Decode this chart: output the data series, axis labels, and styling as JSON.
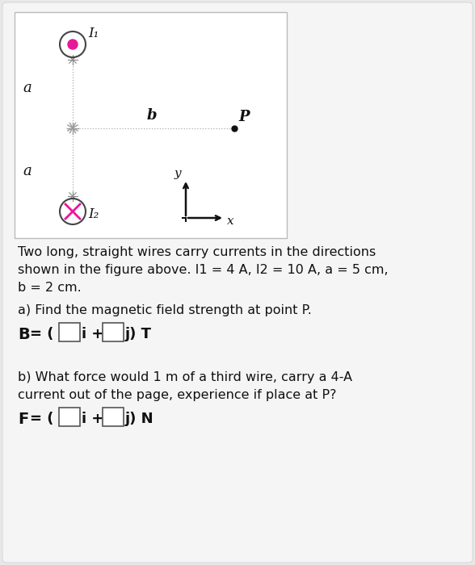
{
  "bg_color": "#e8e8e8",
  "card_color": "#f5f5f5",
  "diagram_bg": "#ffffff",
  "diagram_border": "#cccccc",
  "wire1_label": "I₁",
  "wire2_label": "I₂",
  "label_a": "a",
  "label_b": "b",
  "label_P": "P",
  "label_y": "y",
  "label_x": "x",
  "pink_color": "#e8189a",
  "dot_color": "#111111",
  "line_color": "#aaaaaa",
  "axis_color": "#111111",
  "text_color": "#111111",
  "box_color": "#ffffff",
  "box_edge": "#555555",
  "title_line1": "Two long, straight wires carry currents in the directions",
  "title_line2": "shown in the figure above. I1 = 4 A, I2 = 10 A, a = 5 cm,",
  "title_line2_bold_parts": [
    "4",
    "10",
    "5"
  ],
  "title_line3": "b = 2 cm.",
  "title_line3_bold": [
    "2"
  ],
  "part_a_label": "a) Find the magnetic field strength at point P.",
  "part_b_line1": "b) What force would 1 m of a third wire, carry a 4-A",
  "part_b_line2": "current out of the page, experience if place at P?"
}
